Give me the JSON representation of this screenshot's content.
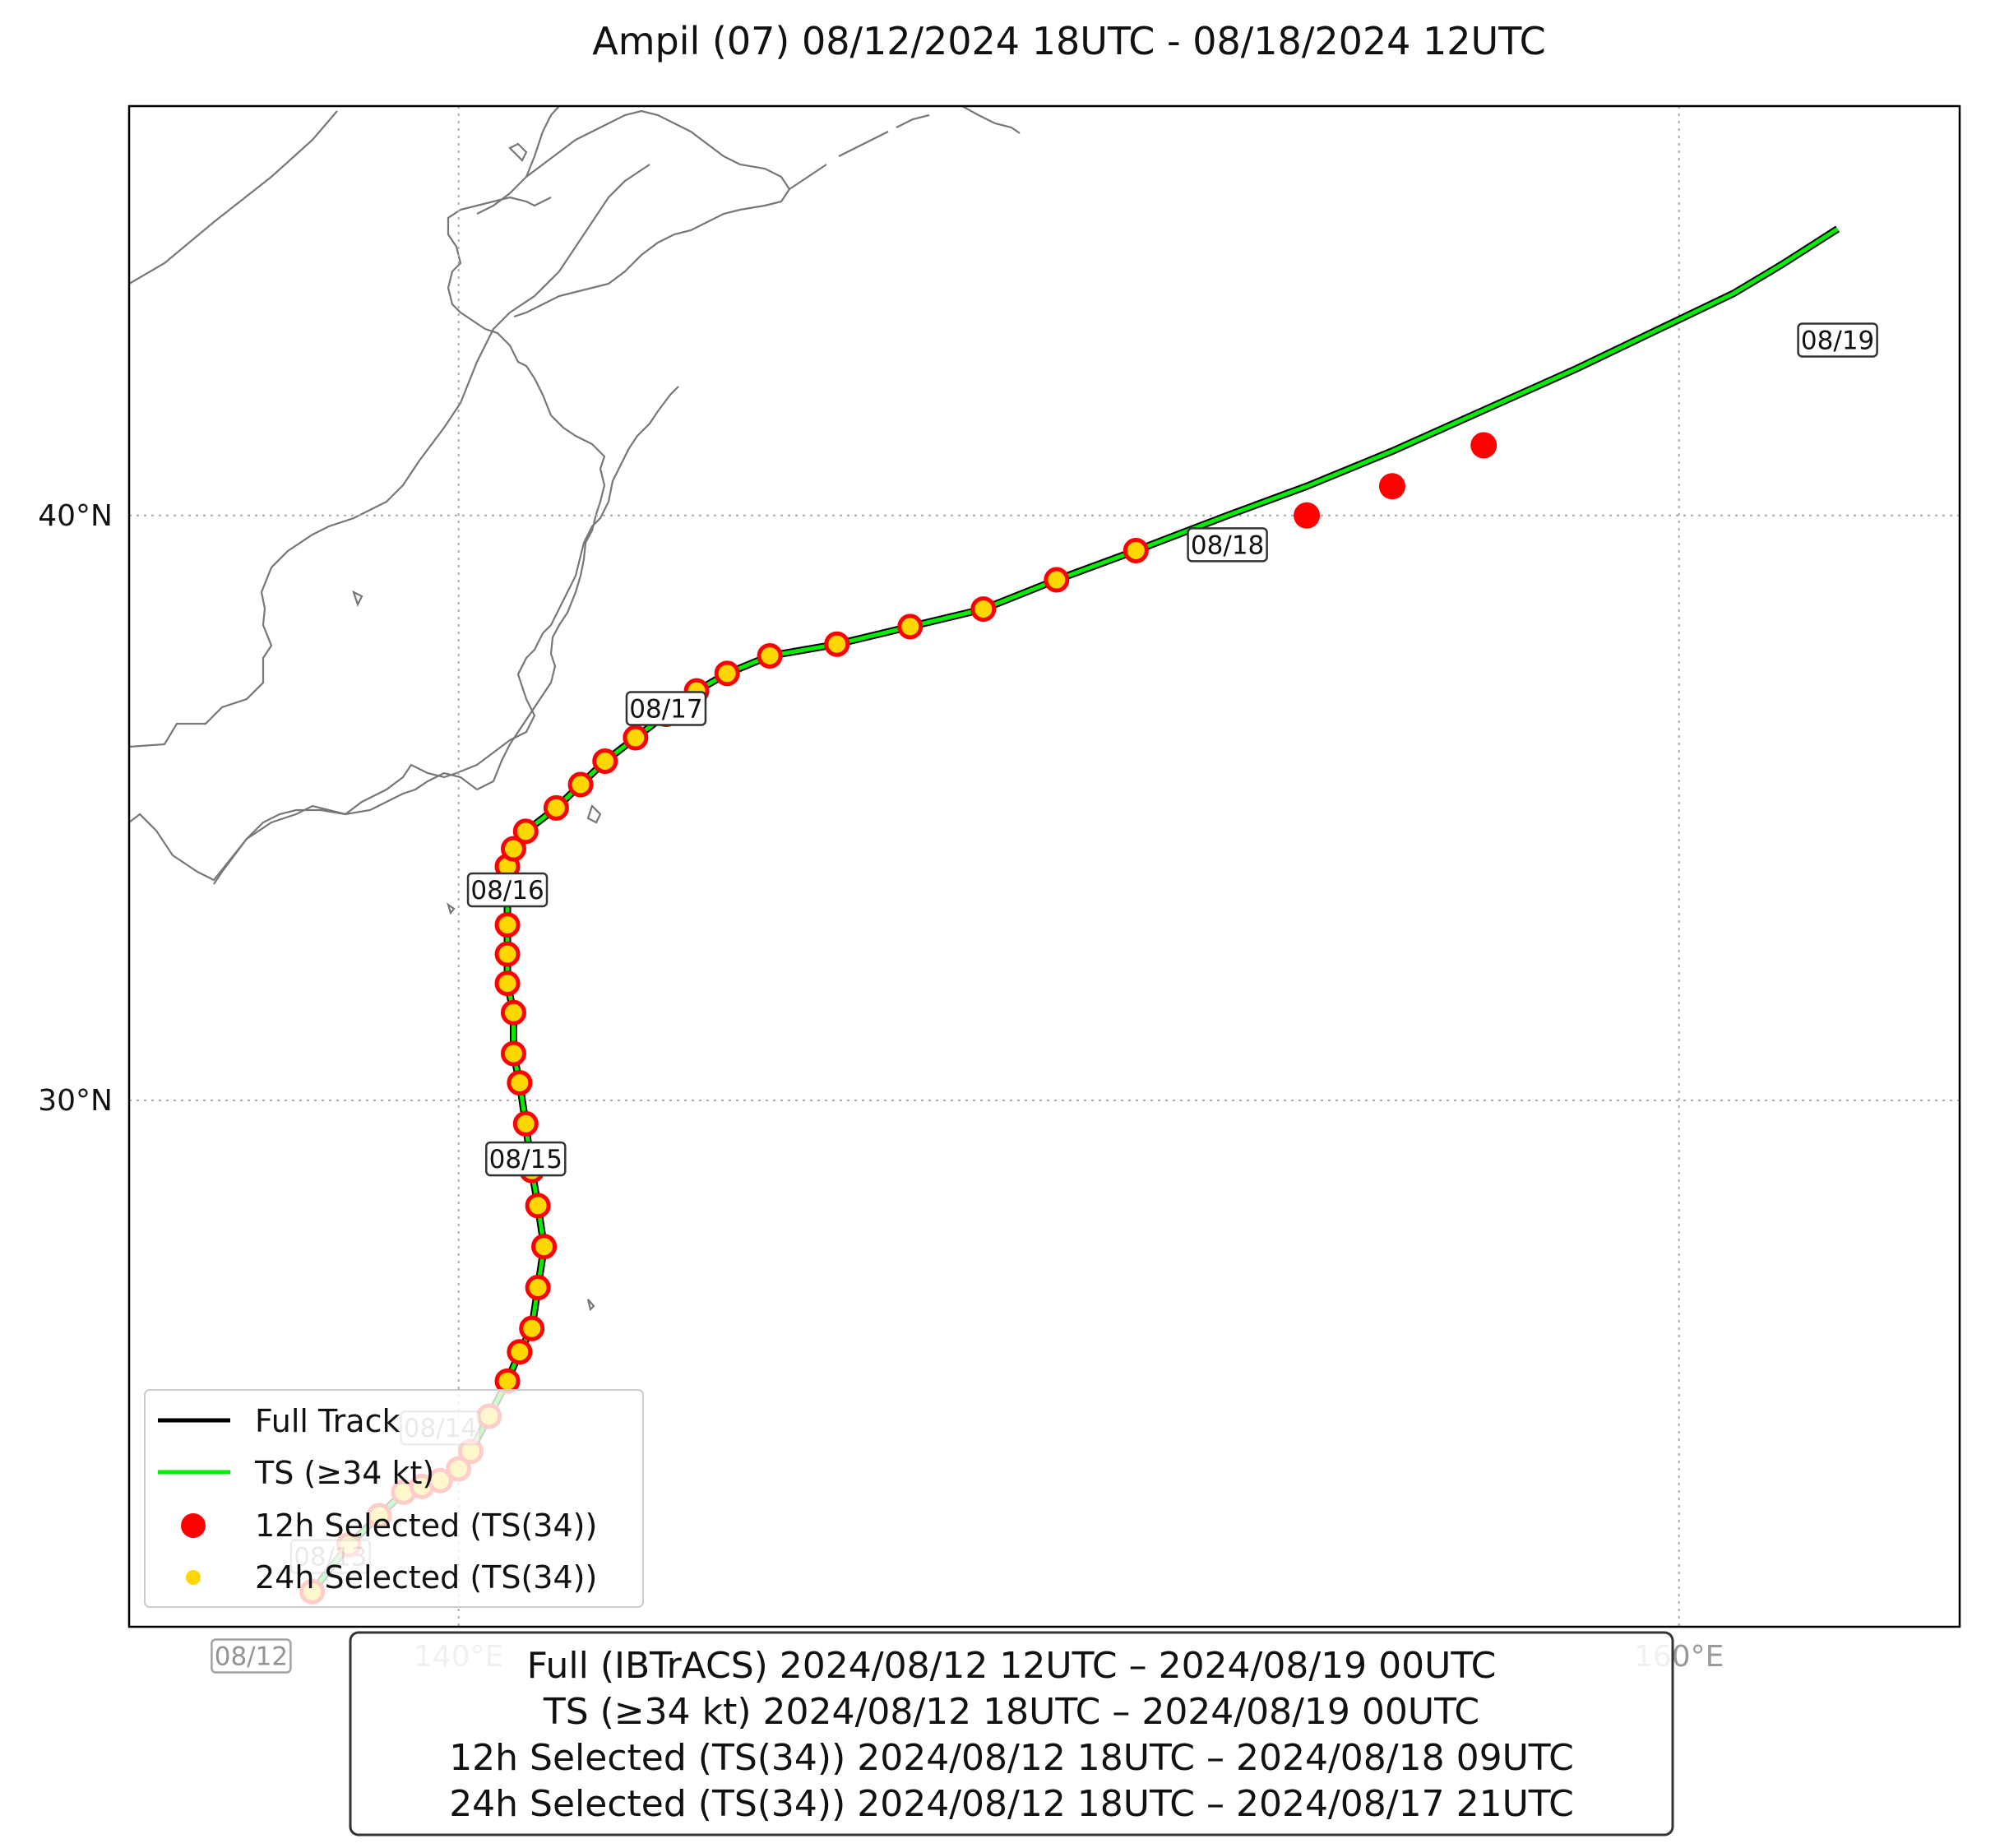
{
  "title": "Ampil (07)   08/12/2024 18UTC - 08/18/2024 12UTC",
  "axes": {
    "lat_ticks": [
      {
        "lat": 40,
        "label": "40°N"
      },
      {
        "lat": 30,
        "label": "30°N"
      }
    ],
    "lon_ticks": [
      {
        "lon": 140,
        "label": "140°E"
      },
      {
        "lon": 160,
        "label": "160°E"
      }
    ],
    "grid": true
  },
  "date_labels": [
    {
      "text": "08/12",
      "lon": 136.6,
      "lat": 20.5,
      "faded": true
    },
    {
      "text": "08/13",
      "lon": 137.9,
      "lat": 22.2,
      "faded": true
    },
    {
      "text": "08/14",
      "lon": 139.7,
      "lat": 24.4,
      "faded": true
    },
    {
      "text": "08/15",
      "lon": 141.1,
      "lat": 29.0,
      "faded": false
    },
    {
      "text": "08/16",
      "lon": 140.8,
      "lat": 33.6,
      "faded": false
    },
    {
      "text": "08/17",
      "lon": 143.4,
      "lat": 36.7,
      "faded": false
    },
    {
      "text": "08/18",
      "lon": 152.6,
      "lat": 39.5,
      "faded": false
    },
    {
      "text": "08/19",
      "lon": 162.6,
      "lat": 43.0,
      "faded": false
    }
  ],
  "track": {
    "full_color": "#000000",
    "ts_color": "#00ee00",
    "points": [
      [
        137.6,
        21.6
      ],
      [
        138.2,
        22.4
      ],
      [
        138.7,
        22.9
      ],
      [
        139.1,
        23.3
      ],
      [
        139.4,
        23.4
      ],
      [
        139.7,
        23.5
      ],
      [
        140.0,
        23.7
      ],
      [
        140.2,
        24.0
      ],
      [
        140.5,
        24.6
      ],
      [
        140.8,
        25.2
      ],
      [
        141.0,
        25.7
      ],
      [
        141.2,
        26.1
      ],
      [
        141.3,
        26.8
      ],
      [
        141.4,
        27.5
      ],
      [
        141.3,
        28.2
      ],
      [
        141.2,
        28.8
      ],
      [
        141.1,
        29.6
      ],
      [
        141.0,
        30.3
      ],
      [
        140.9,
        30.8
      ],
      [
        140.9,
        31.5
      ],
      [
        140.8,
        32.0
      ],
      [
        140.8,
        32.5
      ],
      [
        140.8,
        33.0
      ],
      [
        140.8,
        33.6
      ],
      [
        140.8,
        34.0
      ],
      [
        140.9,
        34.3
      ],
      [
        141.1,
        34.6
      ],
      [
        141.6,
        35.0
      ],
      [
        142.0,
        35.4
      ],
      [
        142.4,
        35.8
      ],
      [
        142.9,
        36.2
      ],
      [
        143.4,
        36.6
      ],
      [
        143.9,
        37.0
      ],
      [
        144.4,
        37.3
      ],
      [
        145.1,
        37.6
      ],
      [
        146.2,
        37.8
      ],
      [
        147.4,
        38.1
      ],
      [
        148.6,
        38.4
      ],
      [
        149.8,
        38.9
      ],
      [
        151.1,
        39.4
      ],
      [
        152.6,
        40.0
      ],
      [
        153.9,
        40.5
      ],
      [
        155.3,
        41.1
      ],
      [
        156.8,
        41.8
      ],
      [
        158.3,
        42.5
      ],
      [
        159.7,
        43.2
      ],
      [
        160.9,
        43.8
      ],
      [
        161.7,
        44.3
      ],
      [
        162.6,
        44.9
      ]
    ]
  },
  "sel12h": {
    "color": "#ff0000",
    "points": [
      [
        152.6,
        39.5
      ],
      [
        153.9,
        40.0
      ],
      [
        155.3,
        40.5
      ],
      [
        156.8,
        41.2
      ]
    ]
  },
  "sel24h": {
    "color": "#ffd700",
    "edge": "#ff0000",
    "points": [
      [
        137.6,
        21.6
      ],
      [
        138.2,
        22.4
      ],
      [
        138.7,
        22.9
      ],
      [
        139.1,
        23.3
      ],
      [
        139.4,
        23.4
      ],
      [
        139.7,
        23.5
      ],
      [
        140.0,
        23.7
      ],
      [
        140.2,
        24.0
      ],
      [
        140.5,
        24.6
      ],
      [
        140.8,
        25.2
      ],
      [
        141.0,
        25.7
      ],
      [
        141.2,
        26.1
      ],
      [
        141.3,
        26.8
      ],
      [
        141.4,
        27.5
      ],
      [
        141.3,
        28.2
      ],
      [
        141.2,
        28.8
      ],
      [
        141.1,
        29.6
      ],
      [
        141.0,
        30.3
      ],
      [
        140.9,
        30.8
      ],
      [
        140.9,
        31.5
      ],
      [
        140.8,
        32.0
      ],
      [
        140.8,
        32.5
      ],
      [
        140.8,
        33.0
      ],
      [
        140.8,
        33.6
      ],
      [
        140.8,
        34.0
      ],
      [
        140.9,
        34.3
      ],
      [
        141.1,
        34.6
      ],
      [
        141.6,
        35.0
      ],
      [
        142.0,
        35.4
      ],
      [
        142.4,
        35.8
      ],
      [
        142.9,
        36.2
      ],
      [
        143.4,
        36.6
      ],
      [
        143.9,
        37.0
      ],
      [
        144.4,
        37.3
      ],
      [
        145.1,
        37.6
      ],
      [
        146.2,
        37.8
      ],
      [
        147.4,
        38.1
      ],
      [
        148.6,
        38.4
      ],
      [
        149.8,
        38.9
      ],
      [
        151.1,
        39.4
      ]
    ]
  },
  "legend": {
    "items": [
      {
        "label": "Full Track",
        "kind": "line",
        "color": "#000000"
      },
      {
        "label": "TS (≥34 kt)",
        "kind": "line",
        "color": "#00ee00"
      },
      {
        "label": "12h Selected (TS(34))",
        "kind": "dot",
        "color": "#ff0000"
      },
      {
        "label": "24h Selected (TS(34))",
        "kind": "smalldot",
        "color": "#ffd700"
      }
    ],
    "placement": "lower-left"
  },
  "summary": [
    "Full (IBTrACS)   2024/08/12 12UTC – 2024/08/19 00UTC",
    "TS (≥34 kt)   2024/08/12 18UTC – 2024/08/19 00UTC",
    "12h Selected (TS(34))   2024/08/12 18UTC – 2024/08/18 09UTC",
    "24h Selected (TS(34))   2024/08/12 18UTC – 2024/08/17 21UTC"
  ],
  "map": {
    "lon_range": [
      134.6,
      164.6
    ],
    "lat_range": [
      21.0,
      47.0
    ],
    "coast_color": "#777777"
  }
}
